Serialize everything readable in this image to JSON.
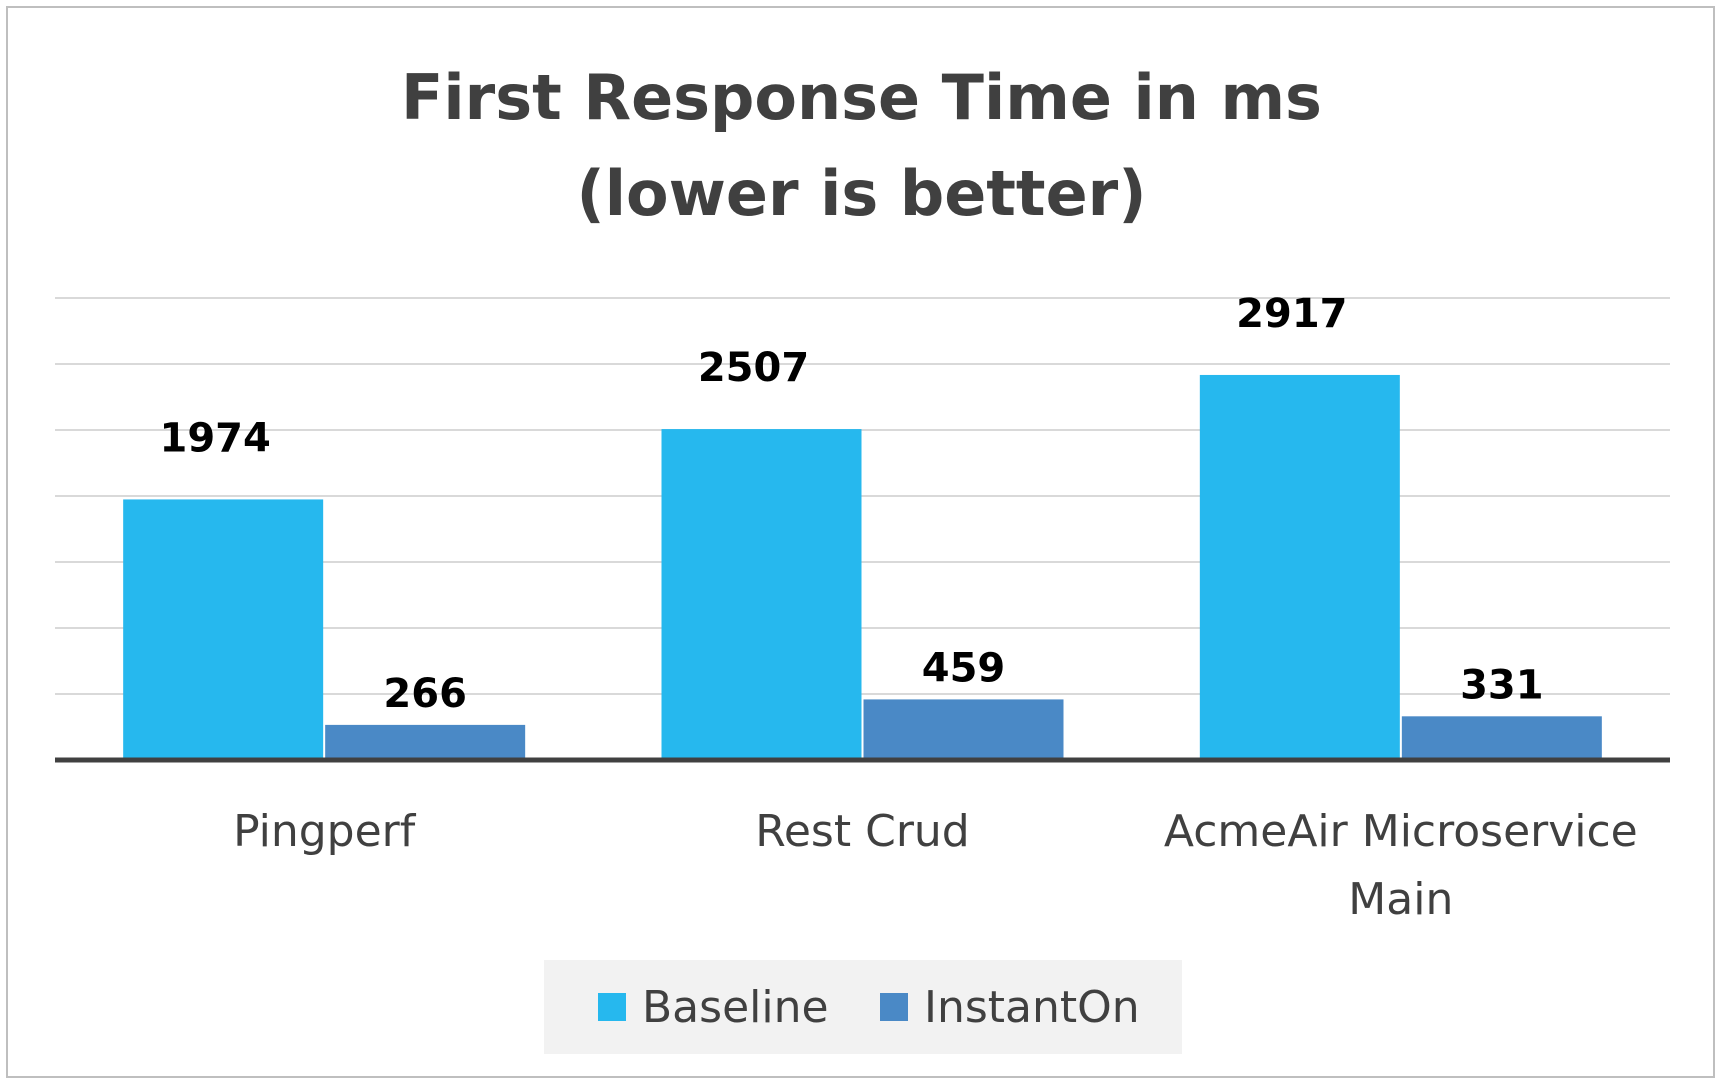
{
  "chart_data": {
    "type": "bar",
    "title_lines": [
      "First Response Time in ms",
      "(lower is better)"
    ],
    "categories": [
      [
        "Pingperf"
      ],
      [
        "Rest Crud"
      ],
      [
        "AcmeAir Microservice",
        "Main"
      ]
    ],
    "series": [
      {
        "name": "Baseline",
        "color": "#26b8ee",
        "values": [
          1974,
          2507,
          2917
        ]
      },
      {
        "name": "InstantOn",
        "color": "#4a89c6",
        "values": [
          266,
          459,
          331
        ]
      }
    ],
    "ylim": [
      0,
      3500
    ],
    "grid": true,
    "legend_position": "bottom",
    "data_labels": true
  }
}
